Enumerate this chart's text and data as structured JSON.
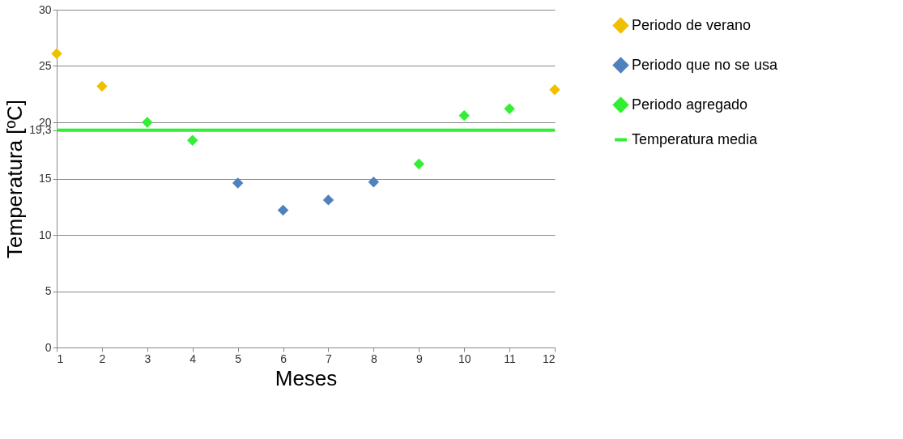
{
  "chart_data": {
    "type": "scatter",
    "xlabel": "Meses",
    "ylabel": "Temperatura [ºC]",
    "x": [
      1,
      2,
      3,
      4,
      5,
      6,
      7,
      8,
      9,
      10,
      11,
      12
    ],
    "series": [
      {
        "name": "Periodo de verano",
        "color": "#f0c000",
        "values": [
          26.1,
          23.2,
          null,
          null,
          null,
          null,
          null,
          null,
          null,
          null,
          null,
          22.9
        ]
      },
      {
        "name": "Periodo que no se usa",
        "color": "#4f81bd",
        "values": [
          null,
          null,
          null,
          null,
          14.6,
          12.2,
          13.1,
          14.7,
          null,
          null,
          null,
          null
        ]
      },
      {
        "name": "Periodo agregado",
        "color": "#33ee33",
        "values": [
          null,
          null,
          20.0,
          18.4,
          null,
          null,
          null,
          null,
          16.3,
          20.6,
          21.2,
          null
        ]
      },
      {
        "name": "Temperatura media",
        "type": "line",
        "color": "#33ee33",
        "marker": "none",
        "line_style": "solid",
        "values": [
          19.3,
          19.3,
          19.3,
          19.3,
          19.3,
          19.3,
          19.3,
          19.3,
          19.3,
          19.3,
          19.3,
          19.3
        ]
      }
    ],
    "xlim": [
      1,
      12
    ],
    "xticks": [
      1,
      2,
      3,
      4,
      5,
      6,
      7,
      8,
      9,
      10,
      11,
      12
    ],
    "ylim": [
      0,
      30
    ],
    "yticks": [
      0,
      5,
      10,
      15,
      {
        "value": 19.3,
        "label": "19,3"
      },
      20,
      25,
      30
    ],
    "grid": "y",
    "legend": "right",
    "marker": "diamond"
  }
}
